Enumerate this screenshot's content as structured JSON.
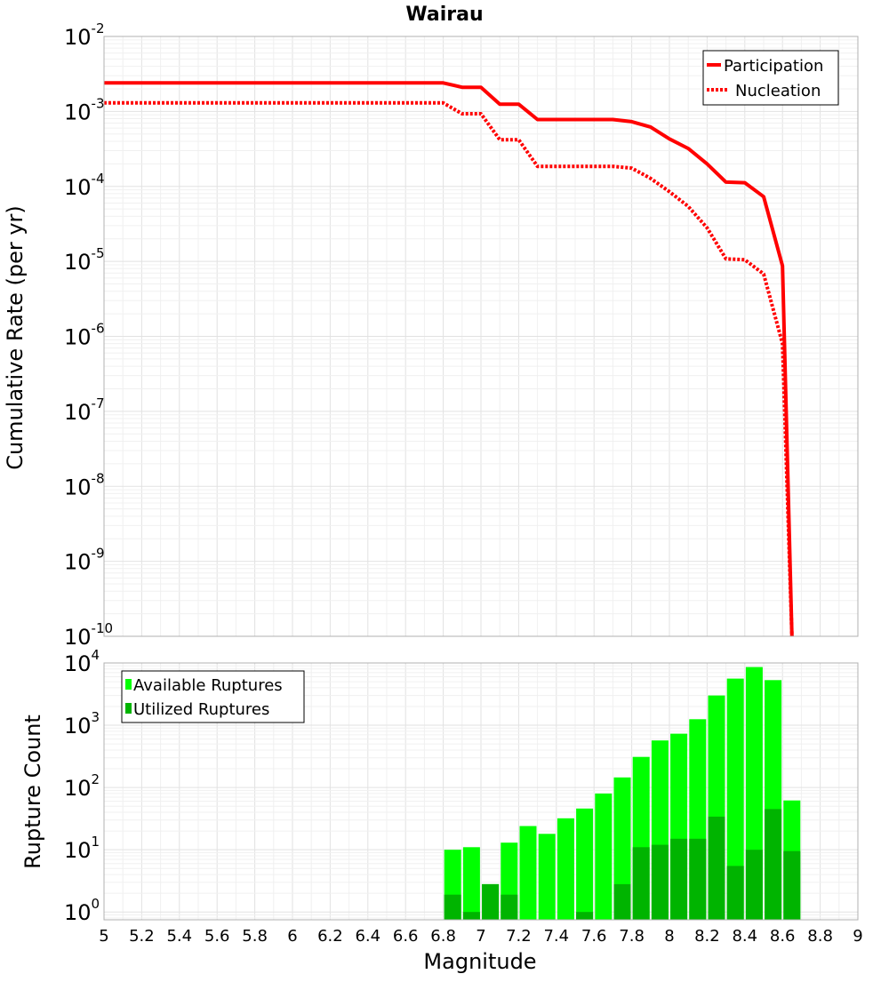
{
  "chart_data": [
    {
      "type": "line",
      "title": "Wairau",
      "xlabel": "",
      "ylabel": "Cumulative Rate (per yr)",
      "xlim": [
        5,
        9
      ],
      "ylim": [
        1e-10,
        0.01
      ],
      "yscale": "log",
      "grid": true,
      "legend_position": "top-right",
      "y_ticks": [
        {
          "base": "10",
          "exp": "-2",
          "value": 0.01
        },
        {
          "base": "10",
          "exp": "-3",
          "value": 0.001
        },
        {
          "base": "10",
          "exp": "-4",
          "value": 0.0001
        },
        {
          "base": "10",
          "exp": "-5",
          "value": 1e-05
        },
        {
          "base": "10",
          "exp": "-6",
          "value": 1e-06
        },
        {
          "base": "10",
          "exp": "-7",
          "value": 1e-07
        },
        {
          "base": "10",
          "exp": "-8",
          "value": 1e-08
        },
        {
          "base": "10",
          "exp": "-9",
          "value": 1e-09
        },
        {
          "base": "10",
          "exp": "-10",
          "value": 1e-10
        }
      ],
      "series": [
        {
          "name": "Participation",
          "style": "solid",
          "color": "#ff0000",
          "x": [
            5.0,
            6.8,
            6.9,
            7.0,
            7.1,
            7.2,
            7.3,
            7.4,
            7.5,
            7.6,
            7.7,
            7.8,
            7.9,
            8.0,
            8.1,
            8.2,
            8.3,
            8.4,
            8.5,
            8.6,
            8.65
          ],
          "y": [
            0.0024,
            0.0024,
            0.0021,
            0.0021,
            0.00125,
            0.00125,
            0.00078,
            0.00078,
            0.00078,
            0.00078,
            0.00078,
            0.00073,
            0.00062,
            0.00043,
            0.00032,
            0.0002,
            0.000114,
            0.000112,
            7.3e-05,
            8.7e-06,
            1e-10
          ]
        },
        {
          "name": "Nucleation",
          "style": "dotted",
          "color": "#ff0000",
          "x": [
            5.0,
            6.8,
            6.9,
            7.0,
            7.1,
            7.2,
            7.3,
            7.4,
            7.5,
            7.6,
            7.7,
            7.8,
            7.9,
            8.0,
            8.1,
            8.2,
            8.3,
            8.4,
            8.5,
            8.6,
            8.65
          ],
          "y": [
            0.0013,
            0.0013,
            0.00093,
            0.00093,
            0.00042,
            0.00042,
            0.000185,
            0.000185,
            0.000185,
            0.000185,
            0.000185,
            0.000175,
            0.000128,
            8.5e-05,
            5.4e-05,
            2.8e-05,
            1.08e-05,
            1.05e-05,
            6.8e-06,
            8e-07,
            1e-10
          ]
        }
      ]
    },
    {
      "type": "bar",
      "title": "",
      "xlabel": "Magnitude",
      "ylabel": "Rupture Count",
      "xlim": [
        5,
        9
      ],
      "ylim": [
        0.75,
        10000
      ],
      "yscale": "log",
      "grid": true,
      "legend_position": "top-left",
      "x_ticks": [
        "5",
        "5.2",
        "5.4",
        "5.6",
        "5.8",
        "6",
        "6.2",
        "6.4",
        "6.6",
        "6.8",
        "7",
        "7.2",
        "7.4",
        "7.6",
        "7.8",
        "8",
        "8.2",
        "8.4",
        "8.6",
        "8.8",
        "9"
      ],
      "y_ticks": [
        {
          "base": "10",
          "exp": "0",
          "value": 1
        },
        {
          "base": "10",
          "exp": "1",
          "value": 10
        },
        {
          "base": "10",
          "exp": "2",
          "value": 100
        },
        {
          "base": "10",
          "exp": "3",
          "value": 1000
        },
        {
          "base": "10",
          "exp": "4",
          "value": 10000
        }
      ],
      "categories": [
        6.85,
        6.95,
        7.05,
        7.15,
        7.25,
        7.35,
        7.45,
        7.55,
        7.65,
        7.75,
        7.85,
        7.95,
        8.05,
        8.15,
        8.25,
        8.35,
        8.45,
        8.55,
        8.65
      ],
      "series": [
        {
          "name": "Available Ruptures",
          "color": "#00ff00",
          "values": [
            10,
            11,
            2.8,
            13,
            24,
            18,
            32,
            46,
            80,
            145,
            310,
            570,
            730,
            1250,
            3000,
            5600,
            8600,
            5300,
            62
          ]
        },
        {
          "name": "Utilized Ruptures",
          "color": "#00b400",
          "values": [
            1.9,
            1,
            2.8,
            1.9,
            null,
            null,
            null,
            1,
            null,
            2.8,
            11,
            12,
            15,
            15,
            34,
            5.5,
            10,
            45,
            9.5
          ]
        }
      ]
    }
  ]
}
